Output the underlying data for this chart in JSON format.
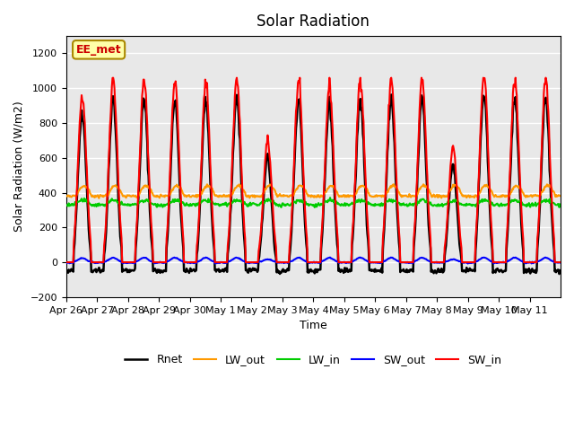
{
  "title": "Solar Radiation",
  "xlabel": "Time",
  "ylabel": "Solar Radiation (W/m2)",
  "ylim": [
    -200,
    1300
  ],
  "yticks": [
    -200,
    0,
    200,
    400,
    600,
    800,
    1000,
    1200
  ],
  "n_days": 16,
  "background_color": "#ffffff",
  "plot_bg_color": "#e8e8e8",
  "grid_color": "#ffffff",
  "label_box_text": "EE_met",
  "label_box_facecolor": "#ffffaa",
  "label_box_edgecolor": "#aa8800",
  "label_box_textcolor": "#cc0000",
  "series_colors": {
    "SW_in": "#ff0000",
    "SW_out": "#0000ff",
    "LW_in": "#00cc00",
    "LW_out": "#ff9900",
    "Rnet": "#000000"
  },
  "series_linewidths": {
    "SW_in": 1.5,
    "SW_out": 1.5,
    "LW_in": 1.5,
    "LW_out": 1.5,
    "Rnet": 1.8
  },
  "tick_label_dates": [
    "Apr 26",
    "Apr 27",
    "Apr 28",
    "Apr 29",
    "Apr 30",
    "May 1",
    "May 2",
    "May 3",
    "May 4",
    "May 5",
    "May 6",
    "May 7",
    "May 8",
    "May 9",
    "May 10",
    "May 11"
  ],
  "figsize": [
    6.4,
    4.8
  ],
  "dpi": 100
}
